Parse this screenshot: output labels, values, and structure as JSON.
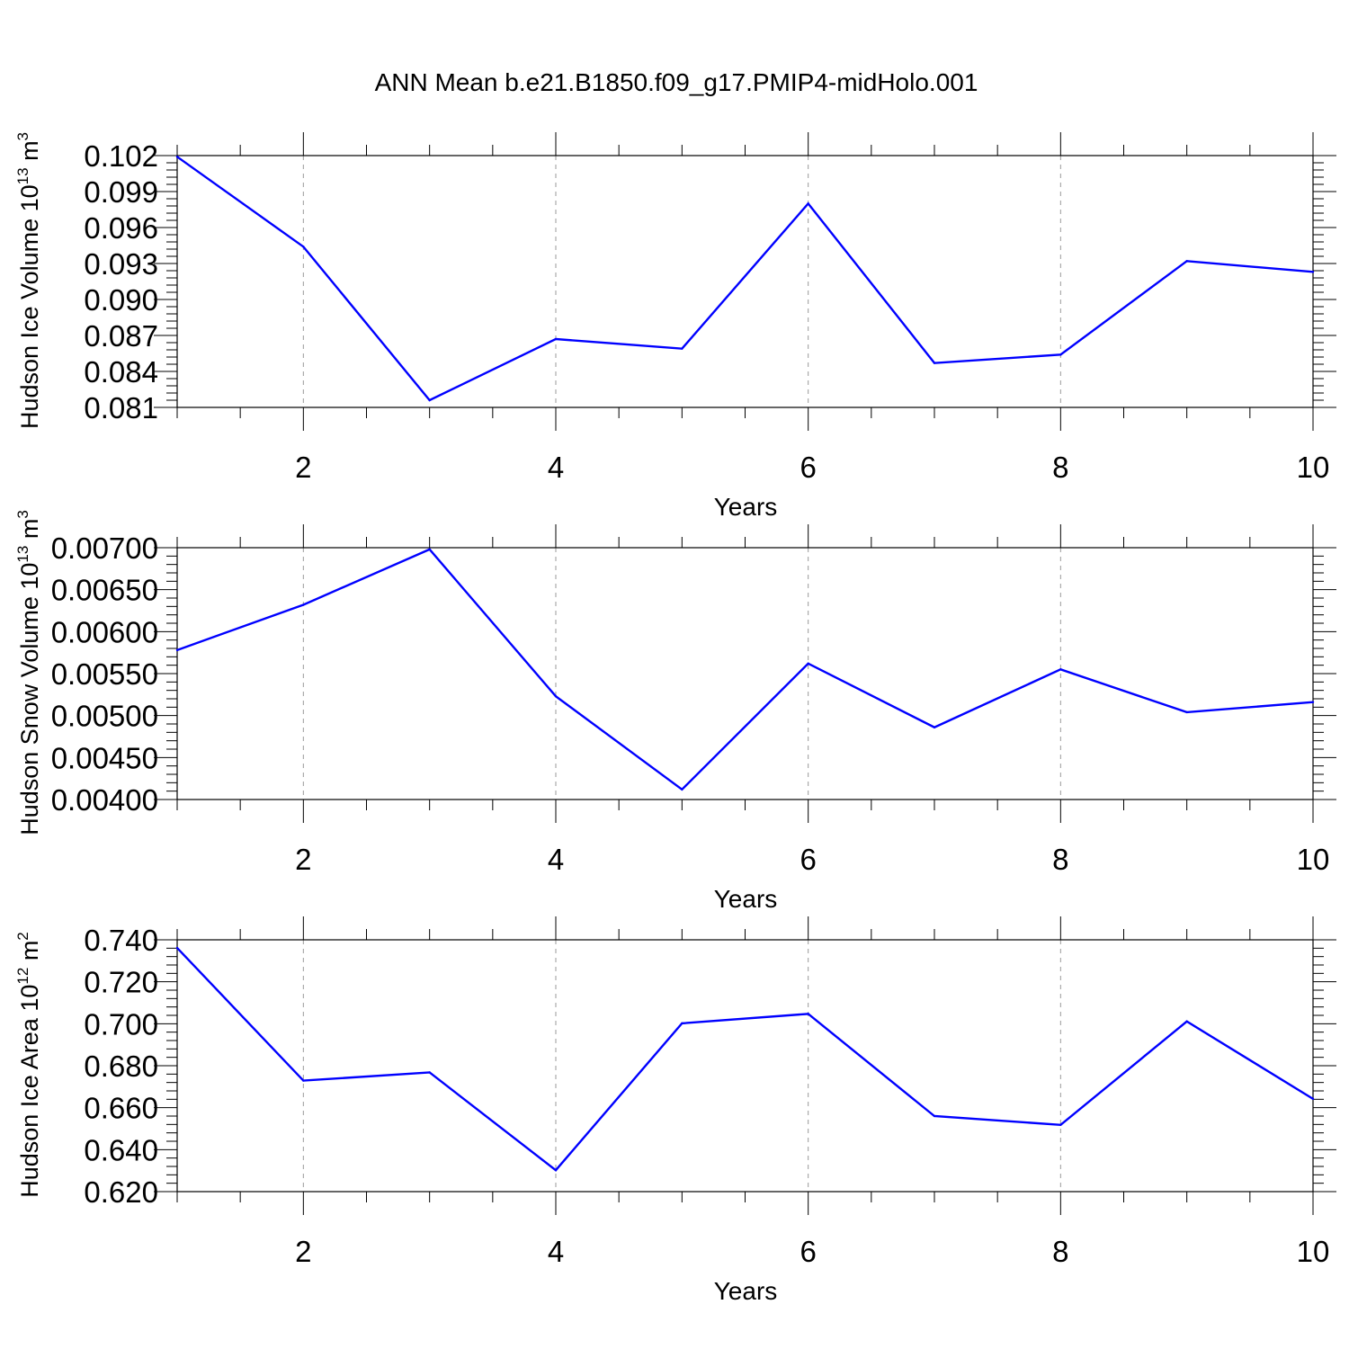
{
  "title": "ANN Mean b.e21.B1850.f09_g17.PMIP4-midHolo.001",
  "colors": {
    "line": "#0000ff",
    "axis": "#000000",
    "grid": "#999999"
  },
  "chart_data": [
    {
      "type": "line",
      "xlabel": "Years",
      "ylabel": {
        "main": "Hudson Ice Volume 10",
        "exp": "13",
        "unit": " m",
        "unit_exp": "3"
      },
      "xlim": [
        1,
        10
      ],
      "ylim": [
        0.081,
        0.102
      ],
      "xticks": [
        "2",
        "4",
        "6",
        "8",
        "10"
      ],
      "xtick_values": [
        2,
        4,
        6,
        8,
        10
      ],
      "yticks": [
        "0.081",
        "0.084",
        "0.087",
        "0.090",
        "0.093",
        "0.096",
        "0.099",
        "0.102"
      ],
      "ytick_values": [
        0.081,
        0.084,
        0.087,
        0.09,
        0.093,
        0.096,
        0.099,
        0.102
      ],
      "x": [
        1,
        2,
        3,
        4,
        5,
        6,
        7,
        8,
        9,
        10
      ],
      "y": [
        0.1019,
        0.0944,
        0.0816,
        0.0867,
        0.0859,
        0.098,
        0.0847,
        0.0854,
        0.0932,
        0.0923
      ]
    },
    {
      "type": "line",
      "xlabel": "Years",
      "ylabel": {
        "main": "Hudson Snow Volume 10",
        "exp": "13",
        "unit": " m",
        "unit_exp": "3"
      },
      "xlim": [
        1,
        10
      ],
      "ylim": [
        0.004,
        0.007
      ],
      "xticks": [
        "2",
        "4",
        "6",
        "8",
        "10"
      ],
      "xtick_values": [
        2,
        4,
        6,
        8,
        10
      ],
      "yticks": [
        "0.00400",
        "0.00450",
        "0.00500",
        "0.00550",
        "0.00600",
        "0.00650",
        "0.00700"
      ],
      "ytick_values": [
        0.004,
        0.0045,
        0.005,
        0.0055,
        0.006,
        0.0065,
        0.007
      ],
      "x": [
        1,
        2,
        3,
        4,
        5,
        6,
        7,
        8,
        9,
        10
      ],
      "y": [
        0.00578,
        0.00632,
        0.00698,
        0.00523,
        0.00412,
        0.00562,
        0.00486,
        0.00555,
        0.00504,
        0.00516
      ]
    },
    {
      "type": "line",
      "xlabel": "Years",
      "ylabel": {
        "main": "Hudson Ice Area 10",
        "exp": "12",
        "unit": " m",
        "unit_exp": "2"
      },
      "xlim": [
        1,
        10
      ],
      "ylim": [
        0.62,
        0.74
      ],
      "xticks": [
        "2",
        "4",
        "6",
        "8",
        "10"
      ],
      "xtick_values": [
        2,
        4,
        6,
        8,
        10
      ],
      "yticks": [
        "0.620",
        "0.640",
        "0.660",
        "0.680",
        "0.700",
        "0.720",
        "0.740"
      ],
      "ytick_values": [
        0.62,
        0.64,
        0.66,
        0.68,
        0.7,
        0.72,
        0.74
      ],
      "x": [
        1,
        2,
        3,
        4,
        5,
        6,
        7,
        8,
        9,
        10
      ],
      "y": [
        0.7361,
        0.6729,
        0.6768,
        0.6302,
        0.7002,
        0.7047,
        0.656,
        0.6518,
        0.7011,
        0.6642
      ]
    }
  ]
}
